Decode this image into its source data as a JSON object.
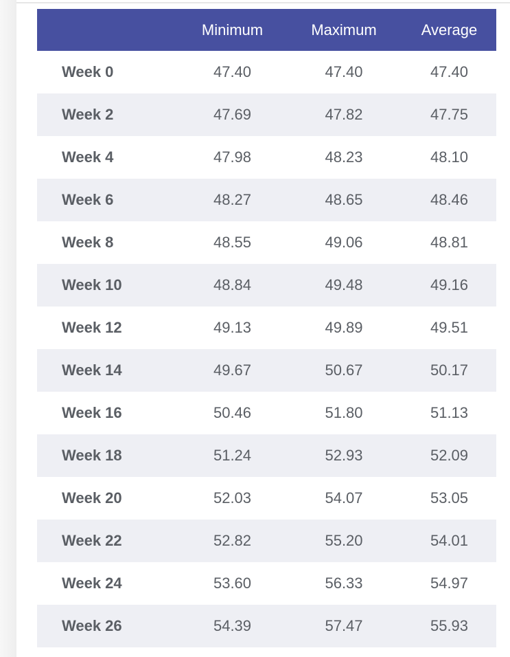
{
  "table": {
    "headers": [
      "",
      "Minimum",
      "Maximum",
      "Average"
    ],
    "rows": [
      [
        "Week 0",
        "47.40",
        "47.40",
        "47.40"
      ],
      [
        "Week 2",
        "47.69",
        "47.82",
        "47.75"
      ],
      [
        "Week 4",
        "47.98",
        "48.23",
        "48.10"
      ],
      [
        "Week 6",
        "48.27",
        "48.65",
        "48.46"
      ],
      [
        "Week 8",
        "48.55",
        "49.06",
        "48.81"
      ],
      [
        "Week 10",
        "48.84",
        "49.48",
        "49.16"
      ],
      [
        "Week 12",
        "49.13",
        "49.89",
        "49.51"
      ],
      [
        "Week 14",
        "49.67",
        "50.67",
        "50.17"
      ],
      [
        "Week 16",
        "50.46",
        "51.80",
        "51.13"
      ],
      [
        "Week 18",
        "51.24",
        "52.93",
        "52.09"
      ],
      [
        "Week 20",
        "52.03",
        "54.07",
        "53.05"
      ],
      [
        "Week 22",
        "52.82",
        "55.20",
        "54.01"
      ],
      [
        "Week 24",
        "53.60",
        "56.33",
        "54.97"
      ],
      [
        "Week 26",
        "54.39",
        "57.47",
        "55.93"
      ]
    ]
  },
  "colors": {
    "header": "#4750a0",
    "stripe": "#eeeff4"
  }
}
